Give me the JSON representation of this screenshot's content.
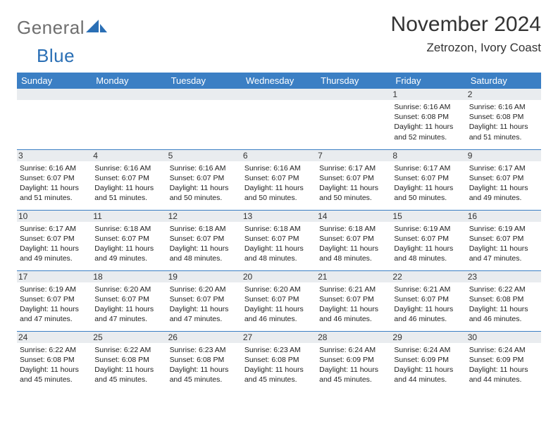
{
  "logo": {
    "part1": "General",
    "part2": "Blue"
  },
  "title": "November 2024",
  "location": "Zetrozon, Ivory Coast",
  "colors": {
    "header_bg": "#3b7fc4",
    "header_text": "#ffffff",
    "daynum_bg": "#e9ecef",
    "border": "#3b7fc4",
    "logo_gray": "#6f6f6f",
    "logo_blue": "#2a6fb5"
  },
  "weekdays": [
    "Sunday",
    "Monday",
    "Tuesday",
    "Wednesday",
    "Thursday",
    "Friday",
    "Saturday"
  ],
  "grid": [
    [
      {
        "day": "",
        "lines": []
      },
      {
        "day": "",
        "lines": []
      },
      {
        "day": "",
        "lines": []
      },
      {
        "day": "",
        "lines": []
      },
      {
        "day": "",
        "lines": []
      },
      {
        "day": "1",
        "lines": [
          "Sunrise: 6:16 AM",
          "Sunset: 6:08 PM",
          "Daylight: 11 hours and 52 minutes."
        ]
      },
      {
        "day": "2",
        "lines": [
          "Sunrise: 6:16 AM",
          "Sunset: 6:08 PM",
          "Daylight: 11 hours and 51 minutes."
        ]
      }
    ],
    [
      {
        "day": "3",
        "lines": [
          "Sunrise: 6:16 AM",
          "Sunset: 6:07 PM",
          "Daylight: 11 hours and 51 minutes."
        ]
      },
      {
        "day": "4",
        "lines": [
          "Sunrise: 6:16 AM",
          "Sunset: 6:07 PM",
          "Daylight: 11 hours and 51 minutes."
        ]
      },
      {
        "day": "5",
        "lines": [
          "Sunrise: 6:16 AM",
          "Sunset: 6:07 PM",
          "Daylight: 11 hours and 50 minutes."
        ]
      },
      {
        "day": "6",
        "lines": [
          "Sunrise: 6:16 AM",
          "Sunset: 6:07 PM",
          "Daylight: 11 hours and 50 minutes."
        ]
      },
      {
        "day": "7",
        "lines": [
          "Sunrise: 6:17 AM",
          "Sunset: 6:07 PM",
          "Daylight: 11 hours and 50 minutes."
        ]
      },
      {
        "day": "8",
        "lines": [
          "Sunrise: 6:17 AM",
          "Sunset: 6:07 PM",
          "Daylight: 11 hours and 50 minutes."
        ]
      },
      {
        "day": "9",
        "lines": [
          "Sunrise: 6:17 AM",
          "Sunset: 6:07 PM",
          "Daylight: 11 hours and 49 minutes."
        ]
      }
    ],
    [
      {
        "day": "10",
        "lines": [
          "Sunrise: 6:17 AM",
          "Sunset: 6:07 PM",
          "Daylight: 11 hours and 49 minutes."
        ]
      },
      {
        "day": "11",
        "lines": [
          "Sunrise: 6:18 AM",
          "Sunset: 6:07 PM",
          "Daylight: 11 hours and 49 minutes."
        ]
      },
      {
        "day": "12",
        "lines": [
          "Sunrise: 6:18 AM",
          "Sunset: 6:07 PM",
          "Daylight: 11 hours and 48 minutes."
        ]
      },
      {
        "day": "13",
        "lines": [
          "Sunrise: 6:18 AM",
          "Sunset: 6:07 PM",
          "Daylight: 11 hours and 48 minutes."
        ]
      },
      {
        "day": "14",
        "lines": [
          "Sunrise: 6:18 AM",
          "Sunset: 6:07 PM",
          "Daylight: 11 hours and 48 minutes."
        ]
      },
      {
        "day": "15",
        "lines": [
          "Sunrise: 6:19 AM",
          "Sunset: 6:07 PM",
          "Daylight: 11 hours and 48 minutes."
        ]
      },
      {
        "day": "16",
        "lines": [
          "Sunrise: 6:19 AM",
          "Sunset: 6:07 PM",
          "Daylight: 11 hours and 47 minutes."
        ]
      }
    ],
    [
      {
        "day": "17",
        "lines": [
          "Sunrise: 6:19 AM",
          "Sunset: 6:07 PM",
          "Daylight: 11 hours and 47 minutes."
        ]
      },
      {
        "day": "18",
        "lines": [
          "Sunrise: 6:20 AM",
          "Sunset: 6:07 PM",
          "Daylight: 11 hours and 47 minutes."
        ]
      },
      {
        "day": "19",
        "lines": [
          "Sunrise: 6:20 AM",
          "Sunset: 6:07 PM",
          "Daylight: 11 hours and 47 minutes."
        ]
      },
      {
        "day": "20",
        "lines": [
          "Sunrise: 6:20 AM",
          "Sunset: 6:07 PM",
          "Daylight: 11 hours and 46 minutes."
        ]
      },
      {
        "day": "21",
        "lines": [
          "Sunrise: 6:21 AM",
          "Sunset: 6:07 PM",
          "Daylight: 11 hours and 46 minutes."
        ]
      },
      {
        "day": "22",
        "lines": [
          "Sunrise: 6:21 AM",
          "Sunset: 6:07 PM",
          "Daylight: 11 hours and 46 minutes."
        ]
      },
      {
        "day": "23",
        "lines": [
          "Sunrise: 6:22 AM",
          "Sunset: 6:08 PM",
          "Daylight: 11 hours and 46 minutes."
        ]
      }
    ],
    [
      {
        "day": "24",
        "lines": [
          "Sunrise: 6:22 AM",
          "Sunset: 6:08 PM",
          "Daylight: 11 hours and 45 minutes."
        ]
      },
      {
        "day": "25",
        "lines": [
          "Sunrise: 6:22 AM",
          "Sunset: 6:08 PM",
          "Daylight: 11 hours and 45 minutes."
        ]
      },
      {
        "day": "26",
        "lines": [
          "Sunrise: 6:23 AM",
          "Sunset: 6:08 PM",
          "Daylight: 11 hours and 45 minutes."
        ]
      },
      {
        "day": "27",
        "lines": [
          "Sunrise: 6:23 AM",
          "Sunset: 6:08 PM",
          "Daylight: 11 hours and 45 minutes."
        ]
      },
      {
        "day": "28",
        "lines": [
          "Sunrise: 6:24 AM",
          "Sunset: 6:09 PM",
          "Daylight: 11 hours and 45 minutes."
        ]
      },
      {
        "day": "29",
        "lines": [
          "Sunrise: 6:24 AM",
          "Sunset: 6:09 PM",
          "Daylight: 11 hours and 44 minutes."
        ]
      },
      {
        "day": "30",
        "lines": [
          "Sunrise: 6:24 AM",
          "Sunset: 6:09 PM",
          "Daylight: 11 hours and 44 minutes."
        ]
      }
    ]
  ]
}
